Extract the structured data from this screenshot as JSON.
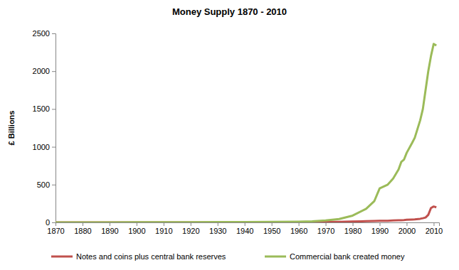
{
  "chart_data": {
    "type": "line",
    "title": "Money Supply 1870 - 2010",
    "y_label": "£ Billions",
    "x": [
      1870,
      1880,
      1890,
      1900,
      1910,
      1920,
      1930,
      1940,
      1950,
      1960,
      1965,
      1970,
      1975,
      1980,
      1985,
      1988,
      1990,
      1993,
      1995,
      1997,
      1998,
      1999,
      2000,
      2002,
      2003,
      2005,
      2006,
      2007,
      2008,
      2009,
      2010,
      2011
    ],
    "series": [
      {
        "name": "Notes and coins plus central bank reserves",
        "color": "#c0504d",
        "values": [
          0.1,
          0.1,
          0.1,
          0.2,
          0.3,
          0.5,
          0.6,
          1,
          2,
          3,
          4,
          6,
          8,
          12,
          16,
          18,
          20,
          22,
          25,
          28,
          29,
          30,
          35,
          38,
          40,
          48,
          55,
          65,
          100,
          190,
          210,
          200
        ]
      },
      {
        "name": "Commercial bank created money",
        "color": "#9bbb59",
        "values": [
          0.5,
          0.8,
          1,
          1.5,
          2,
          3,
          4,
          5,
          6,
          10,
          15,
          25,
          45,
          90,
          180,
          280,
          450,
          500,
          580,
          700,
          800,
          830,
          920,
          1050,
          1120,
          1350,
          1500,
          1750,
          2000,
          2200,
          2360,
          2340
        ]
      }
    ],
    "xlim": [
      1870,
      2012
    ],
    "xticks": [
      1870,
      1880,
      1890,
      1900,
      1910,
      1920,
      1930,
      1940,
      1950,
      1960,
      1970,
      1980,
      1990,
      2000,
      2010
    ],
    "ylim": [
      0,
      2500
    ],
    "yticks": [
      0,
      500,
      1000,
      1500,
      2000,
      2500
    ],
    "grid": false,
    "legend": "bottom"
  }
}
